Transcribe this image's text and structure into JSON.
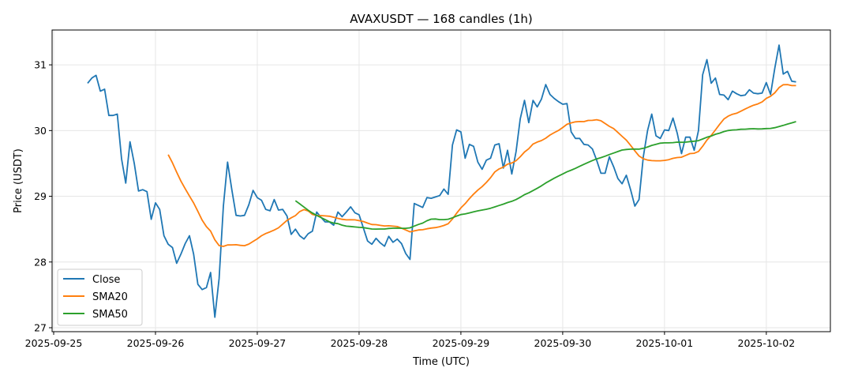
{
  "chart_data": {
    "type": "line",
    "title": "AVAXUSDT — 168 candles (1h)",
    "xlabel": "Time (UTC)",
    "ylabel": "Price (USDT)",
    "start_time": "2025-09-25 08:00",
    "interval_hours": 1,
    "ylim": [
      26.94,
      31.53
    ],
    "xlim_hours_from_first_tick": [
      -0.37,
      183.1
    ],
    "grid": true,
    "legend_position": "lower-left",
    "x_ticks": [
      "2025-09-25",
      "2025-09-26",
      "2025-09-27",
      "2025-09-28",
      "2025-09-29",
      "2025-09-30",
      "2025-10-01",
      "2025-10-02"
    ],
    "y_ticks": [
      27,
      28,
      29,
      30,
      31
    ],
    "colors": {
      "Close": "#1f77b4",
      "SMA20": "#ff7f0e",
      "SMA50": "#2ca02c"
    },
    "series": [
      {
        "name": "Close",
        "values": [
          30.72,
          30.8,
          30.84,
          30.6,
          30.63,
          30.23,
          30.23,
          30.25,
          29.57,
          29.2,
          29.83,
          29.5,
          29.08,
          29.1,
          29.07,
          28.65,
          28.9,
          28.8,
          28.4,
          28.27,
          28.22,
          27.98,
          28.12,
          28.28,
          28.4,
          28.12,
          27.66,
          27.58,
          27.61,
          27.84,
          27.16,
          27.75,
          28.85,
          29.52,
          29.1,
          28.71,
          28.7,
          28.71,
          28.87,
          29.09,
          28.98,
          28.94,
          28.8,
          28.78,
          28.95,
          28.79,
          28.8,
          28.7,
          28.42,
          28.5,
          28.4,
          28.35,
          28.43,
          28.47,
          28.76,
          28.68,
          28.61,
          28.61,
          28.56,
          28.76,
          28.69,
          28.76,
          28.84,
          28.75,
          28.72,
          28.52,
          28.32,
          28.27,
          28.36,
          28.29,
          28.24,
          28.39,
          28.3,
          28.35,
          28.28,
          28.13,
          28.04,
          28.89,
          28.86,
          28.83,
          28.98,
          28.97,
          28.99,
          29.01,
          29.11,
          29.03,
          29.78,
          30.01,
          29.98,
          29.58,
          29.79,
          29.76,
          29.52,
          29.41,
          29.55,
          29.58,
          29.78,
          29.8,
          29.43,
          29.7,
          29.34,
          29.68,
          30.18,
          30.46,
          30.12,
          30.46,
          30.36,
          30.48,
          30.7,
          30.55,
          30.49,
          30.44,
          30.4,
          30.41,
          29.98,
          29.88,
          29.88,
          29.79,
          29.78,
          29.72,
          29.55,
          29.35,
          29.35,
          29.6,
          29.45,
          29.27,
          29.19,
          29.32,
          29.1,
          28.85,
          28.95,
          29.6,
          30.0,
          30.25,
          29.92,
          29.88,
          30.01,
          30.0,
          30.19,
          29.96,
          29.65,
          29.9,
          29.9,
          29.7,
          30.0,
          30.85,
          31.08,
          30.72,
          30.8,
          30.55,
          30.54,
          30.47,
          30.6,
          30.56,
          30.53,
          30.54,
          30.62,
          30.57,
          30.56,
          30.57,
          30.73,
          30.55,
          30.95,
          31.3,
          30.86,
          30.9,
          30.75,
          30.74
        ]
      },
      {
        "name": "SMA20",
        "window": 20
      },
      {
        "name": "SMA50",
        "window": 50
      }
    ]
  }
}
